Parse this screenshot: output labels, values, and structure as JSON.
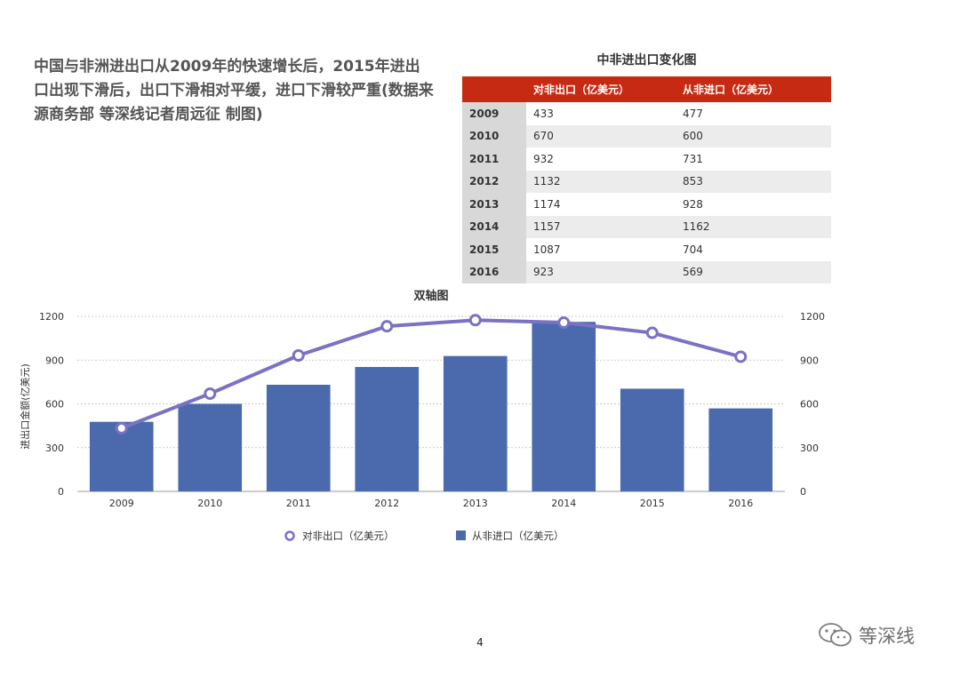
{
  "headline": "中国与非洲进出口从2009年的快速增长后，2015年进出口出现下滑后，出口下滑相对平缓，进口下滑较严重(数据来源商务部 等深线记者周远征 制图)",
  "table": {
    "title": "中非进出口变化图",
    "headers": [
      "",
      "对非出口（亿美元）",
      "从非进口（亿美元）"
    ],
    "rows": [
      [
        "2009",
        "433",
        "477"
      ],
      [
        "2010",
        "670",
        "600"
      ],
      [
        "2011",
        "932",
        "731"
      ],
      [
        "2012",
        "1132",
        "853"
      ],
      [
        "2013",
        "1174",
        "928"
      ],
      [
        "2014",
        "1157",
        "1162"
      ],
      [
        "2015",
        "1087",
        "704"
      ],
      [
        "2016",
        "923",
        "569"
      ]
    ]
  },
  "chart_data": {
    "type": "bar",
    "title": "双轴图",
    "categories": [
      "2009",
      "2010",
      "2011",
      "2012",
      "2013",
      "2014",
      "2015",
      "2016"
    ],
    "ylabel": "进出口金额(亿美元)",
    "ylim": [
      0,
      1200
    ],
    "yticks": [
      "0",
      "300",
      "600",
      "900",
      "1200"
    ],
    "y2ticks": [
      "0",
      "300",
      "600",
      "900",
      "1200"
    ],
    "grid": true,
    "legend_position": "bottom",
    "series": [
      {
        "name": "对非出口（亿美元）",
        "kind": "line",
        "axis": "right",
        "color": "#7b72c4",
        "values": [
          433,
          670,
          932,
          1132,
          1174,
          1157,
          1087,
          923
        ]
      },
      {
        "name": "从非进口（亿美元）",
        "kind": "bar",
        "axis": "left",
        "color": "#4a6aad",
        "values": [
          477,
          600,
          731,
          853,
          928,
          1162,
          704,
          569
        ]
      }
    ]
  },
  "page_number": "4",
  "watermark": {
    "text": "等深线",
    "icon": "wechat-icon"
  }
}
